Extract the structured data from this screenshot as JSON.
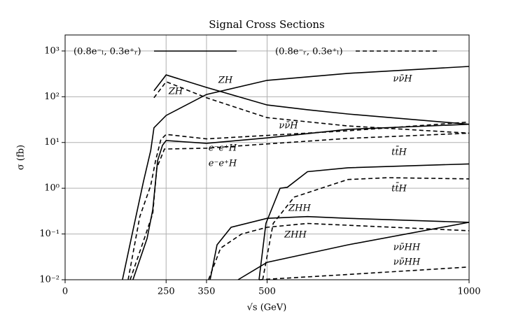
{
  "chart_data": {
    "type": "line",
    "title": "Signal Cross Sections",
    "x_label": "√s (GeV)",
    "y_label": "σ (fb)",
    "xlim": [
      0,
      1000
    ],
    "ylim": [
      0.01,
      2240
    ],
    "log_y": true,
    "grid": true,
    "xticks": [
      0,
      250,
      350,
      500,
      1000
    ],
    "yticks": [
      {
        "value": 0.01,
        "label": "10⁻²"
      },
      {
        "value": 0.1,
        "label": "10⁻¹"
      },
      {
        "value": 1,
        "label": "10⁰"
      },
      {
        "value": 10,
        "label": "10¹"
      },
      {
        "value": 100,
        "label": "10²"
      },
      {
        "value": 1000,
        "label": "10³"
      }
    ],
    "legend": [
      {
        "label": "(0.8e⁻ₗ, 0.3e⁺ᵣ)",
        "dashed": false
      },
      {
        "label": "(0.8e⁻ᵣ, 0.3e⁺ₗ)",
        "dashed": true
      }
    ],
    "series": [
      {
        "name": "ZH",
        "color": "#000000",
        "dashed": false,
        "x": [
          220,
          250,
          350,
          500,
          600,
          700,
          1000
        ],
        "values": [
          135,
          300,
          160,
          66,
          52,
          42,
          25
        ]
      },
      {
        "name": "ZH",
        "color": "#000000",
        "dashed": true,
        "x": [
          220,
          250,
          350,
          500,
          700,
          1000
        ],
        "values": [
          95,
          213,
          95,
          35,
          23,
          16
        ]
      },
      {
        "name": "νν̄H",
        "color": "#000000",
        "dashed": false,
        "x": [
          142,
          168,
          194,
          212,
          220,
          250,
          350,
          500,
          700,
          1000
        ],
        "values": [
          0.01,
          0.12,
          1.4,
          6.7,
          21,
          39,
          112,
          228,
          324,
          460
        ]
      },
      {
        "name": "νν̄H",
        "color": "#000000",
        "dashed": true,
        "x": [
          156,
          185,
          212,
          224,
          237,
          250,
          350,
          700,
          1000
        ],
        "values": [
          0.01,
          0.24,
          1.15,
          4,
          11.5,
          15,
          12,
          18,
          28
        ]
      },
      {
        "name": "e⁻e⁺H",
        "color": "#000000",
        "dashed": false,
        "x": [
          168,
          203,
          217,
          229,
          241,
          250,
          350,
          500,
          700,
          1000
        ],
        "values": [
          0.01,
          0.08,
          0.34,
          4,
          8.7,
          11,
          9.6,
          12.6,
          19.4,
          25
        ]
      },
      {
        "name": "e⁻e⁺H",
        "color": "#000000",
        "dashed": true,
        "x": [
          161,
          194,
          217,
          227,
          246,
          350,
          500,
          700,
          1000
        ],
        "values": [
          0.01,
          0.07,
          0.28,
          2.8,
          7.2,
          7.5,
          9.3,
          12.3,
          16
        ]
      },
      {
        "name": "tt̄H",
        "color": "#000000",
        "dashed": false,
        "x": [
          480,
          497,
          532,
          550,
          600,
          700,
          1000
        ],
        "values": [
          0.01,
          0.17,
          1.0,
          1.05,
          2.3,
          2.8,
          3.4
        ]
      },
      {
        "name": "tt̄H",
        "color": "#000000",
        "dashed": true,
        "x": [
          489,
          515,
          567,
          700,
          800,
          1000
        ],
        "values": [
          0.01,
          0.17,
          0.64,
          1.55,
          1.7,
          1.6
        ]
      },
      {
        "name": "ZHH",
        "color": "#000000",
        "dashed": false,
        "x": [
          359,
          376,
          411,
          500,
          600,
          700,
          1000
        ],
        "values": [
          0.01,
          0.058,
          0.14,
          0.22,
          0.24,
          0.22,
          0.18
        ]
      },
      {
        "name": "ZHH",
        "color": "#000000",
        "dashed": true,
        "x": [
          355,
          385,
          437,
          500,
          600,
          700,
          1000
        ],
        "values": [
          0.01,
          0.049,
          0.1,
          0.14,
          0.17,
          0.155,
          0.118
        ]
      },
      {
        "name": "νν̄HH",
        "color": "#000000",
        "dashed": false,
        "x": [
          428,
          500,
          700,
          1000
        ],
        "values": [
          0.01,
          0.024,
          0.058,
          0.18
        ]
      },
      {
        "name": "νν̄HH",
        "color": "#000000",
        "dashed": true,
        "x": [
          480,
          700,
          1000
        ],
        "values": [
          0.01,
          0.013,
          0.019
        ]
      }
    ]
  }
}
